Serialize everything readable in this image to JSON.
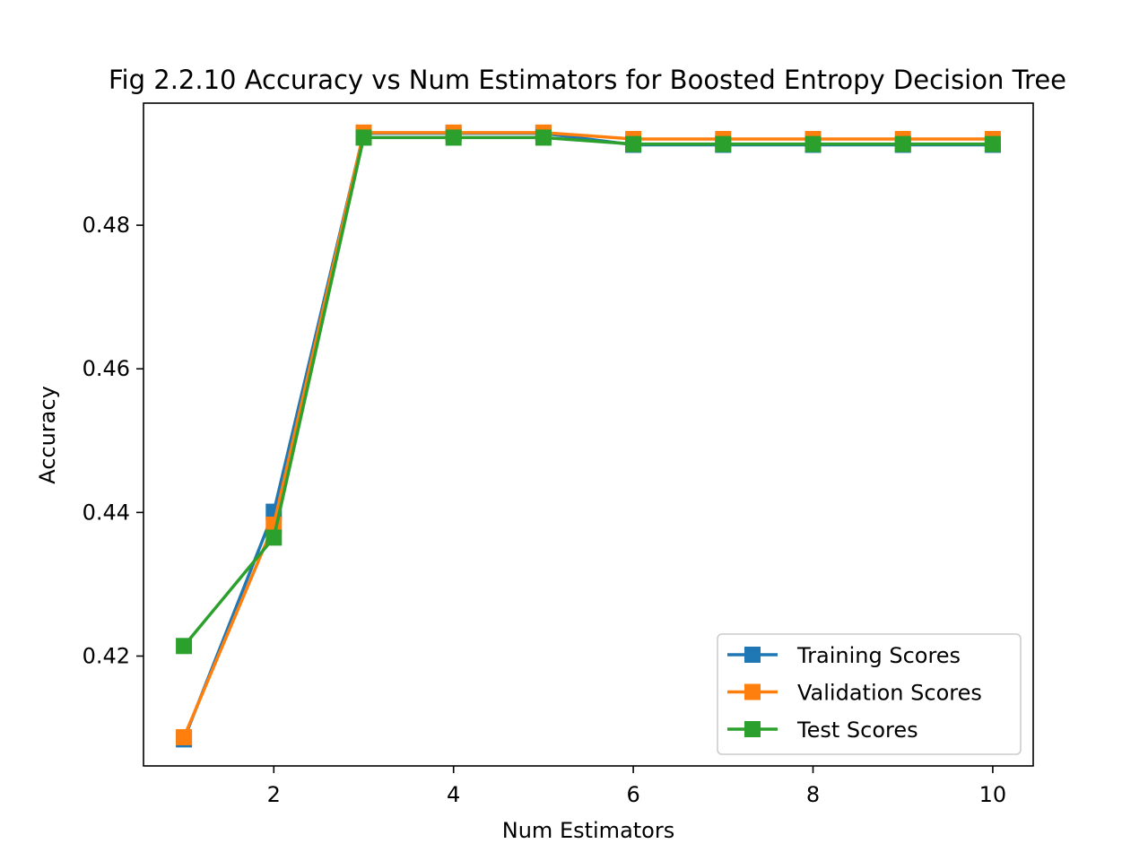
{
  "chart_data": {
    "type": "line",
    "title": "Fig 2.2.10 Accuracy vs Num Estimators for Boosted Entropy Decision Tree",
    "xlabel": "Num Estimators",
    "ylabel": "Accuracy",
    "xlim": [
      0.55,
      10.45
    ],
    "ylim": [
      0.4047,
      0.497
    ],
    "xticks": [
      2,
      4,
      6,
      8,
      10
    ],
    "yticks": [
      0.42,
      0.44,
      0.46,
      0.48
    ],
    "x": [
      1,
      2,
      3,
      4,
      5,
      6,
      7,
      8,
      9,
      10
    ],
    "series": [
      {
        "name": "Training Scores",
        "color": "#1f77b4",
        "marker": "square",
        "values": [
          0.4084,
          0.4401,
          0.4928,
          0.4928,
          0.4928,
          0.4912,
          0.4912,
          0.4912,
          0.4912,
          0.4912
        ]
      },
      {
        "name": "Validation Scores",
        "color": "#ff7f0e",
        "marker": "square",
        "values": [
          0.4087,
          0.4383,
          0.4929,
          0.4929,
          0.4929,
          0.492,
          0.492,
          0.492,
          0.492,
          0.492
        ]
      },
      {
        "name": "Test Scores",
        "color": "#2ca02c",
        "marker": "square",
        "values": [
          0.4214,
          0.4365,
          0.4922,
          0.4922,
          0.4922,
          0.4913,
          0.4913,
          0.4913,
          0.4913,
          0.4913
        ]
      }
    ],
    "legend_position": "bottom-right",
    "grid": false
  }
}
